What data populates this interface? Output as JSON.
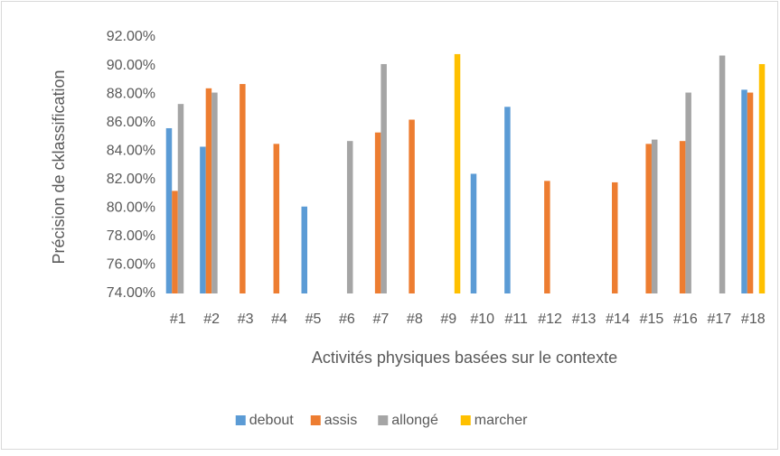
{
  "chart_data": {
    "type": "bar",
    "ylabel": "Précision de cklassification",
    "xlabel": "Activités physiques basées sur le contexte",
    "categories": [
      "#1",
      "#2",
      "#3",
      "#4",
      "#5",
      "#6",
      "#7",
      "#8",
      "#9",
      "#10",
      "#11",
      "#12",
      "#13",
      "#14",
      "#15",
      "#16",
      "#17",
      "#18"
    ],
    "series": [
      {
        "name": "debout",
        "color": "#5b9bd5",
        "values": [
          85.6,
          84.3,
          null,
          null,
          80.1,
          null,
          null,
          null,
          null,
          82.4,
          87.1,
          null,
          null,
          null,
          null,
          null,
          null,
          88.3
        ]
      },
      {
        "name": "assis",
        "color": "#ed7d31",
        "values": [
          81.2,
          88.4,
          88.7,
          84.5,
          null,
          null,
          85.3,
          86.2,
          null,
          null,
          null,
          81.9,
          null,
          81.8,
          84.5,
          84.7,
          null,
          88.1
        ]
      },
      {
        "name": "allongé",
        "color": "#a5a5a5",
        "values": [
          87.3,
          88.1,
          null,
          null,
          null,
          84.7,
          90.1,
          null,
          null,
          null,
          null,
          null,
          null,
          null,
          84.8,
          88.1,
          90.7,
          null
        ]
      },
      {
        "name": "marcher",
        "color": "#ffc000",
        "values": [
          null,
          null,
          null,
          null,
          null,
          null,
          null,
          null,
          90.8,
          null,
          null,
          null,
          null,
          null,
          null,
          null,
          null,
          90.1
        ]
      }
    ],
    "ylim": [
      74,
      92
    ],
    "yticks": [
      {
        "value": 74,
        "label": "74.00%"
      },
      {
        "value": 76,
        "label": "76.00%"
      },
      {
        "value": 78,
        "label": "78.00%"
      },
      {
        "value": 80,
        "label": "80.00%"
      },
      {
        "value": 82,
        "label": "82.00%"
      },
      {
        "value": 84,
        "label": "84.00%"
      },
      {
        "value": 86,
        "label": "86.00%"
      },
      {
        "value": 88,
        "label": "88.00%"
      },
      {
        "value": 90,
        "label": "90.00%"
      },
      {
        "value": 92,
        "label": "92.00%"
      }
    ],
    "legend": "bottom"
  }
}
